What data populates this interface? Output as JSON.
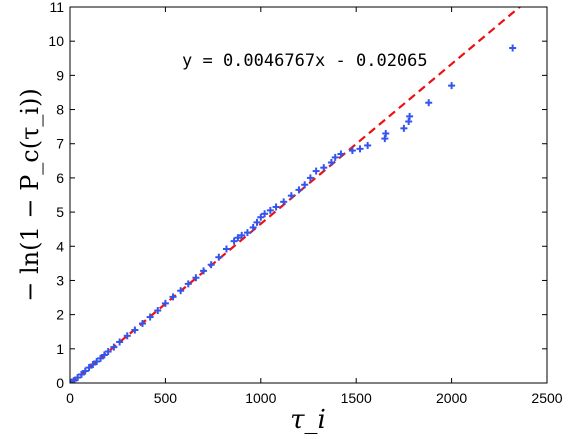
{
  "chart_data": {
    "type": "scatter",
    "title": "",
    "xlabel": "τ_i",
    "ylabel": "− ln(1 − P_c(τ_i))",
    "xlim": [
      0,
      2500
    ],
    "ylim": [
      0,
      11
    ],
    "xticks": [
      "0",
      "500",
      "1000",
      "1500",
      "2000",
      "2500"
    ],
    "yticks": [
      "0",
      "1",
      "2",
      "3",
      "4",
      "5",
      "6",
      "7",
      "8",
      "9",
      "10",
      "11"
    ],
    "grid": false,
    "annotation": "y = 0.0046767x - 0.02065",
    "series": [
      {
        "kind": "scatter",
        "marker": "+",
        "color": "#3355ee",
        "points": [
          [
            3,
            0.01
          ],
          [
            10,
            0.03
          ],
          [
            20,
            0.07
          ],
          [
            40,
            0.16
          ],
          [
            60,
            0.25
          ],
          [
            80,
            0.35
          ],
          [
            100,
            0.45
          ],
          [
            120,
            0.54
          ],
          [
            140,
            0.63
          ],
          [
            160,
            0.72
          ],
          [
            180,
            0.82
          ],
          [
            200,
            0.92
          ],
          [
            230,
            1.05
          ],
          [
            260,
            1.2
          ],
          [
            300,
            1.38
          ],
          [
            340,
            1.55
          ],
          [
            380,
            1.74
          ],
          [
            420,
            1.93
          ],
          [
            460,
            2.12
          ],
          [
            500,
            2.33
          ],
          [
            540,
            2.52
          ],
          [
            580,
            2.7
          ],
          [
            620,
            2.9
          ],
          [
            660,
            3.08
          ],
          [
            700,
            3.28
          ],
          [
            740,
            3.46
          ],
          [
            780,
            3.68
          ],
          [
            820,
            3.92
          ],
          [
            860,
            4.15
          ],
          [
            880,
            4.25
          ],
          [
            900,
            4.32
          ],
          [
            930,
            4.4
          ],
          [
            960,
            4.55
          ],
          [
            980,
            4.7
          ],
          [
            1000,
            4.85
          ],
          [
            1020,
            4.95
          ],
          [
            1050,
            5.05
          ],
          [
            1080,
            5.15
          ],
          [
            1120,
            5.3
          ],
          [
            1160,
            5.48
          ],
          [
            1200,
            5.65
          ],
          [
            1230,
            5.8
          ],
          [
            1260,
            6.0
          ],
          [
            1290,
            6.2
          ],
          [
            1330,
            6.3
          ],
          [
            1370,
            6.45
          ],
          [
            1390,
            6.6
          ],
          [
            1420,
            6.7
          ],
          [
            1480,
            6.8
          ],
          [
            1520,
            6.85
          ],
          [
            1560,
            6.95
          ],
          [
            1650,
            7.15
          ],
          [
            1655,
            7.3
          ],
          [
            1750,
            7.45
          ],
          [
            1775,
            7.65
          ],
          [
            1780,
            7.8
          ],
          [
            1880,
            8.2
          ],
          [
            2000,
            8.7
          ],
          [
            2320,
            9.8
          ]
        ]
      },
      {
        "kind": "line",
        "style": "dashed",
        "color": "#ee1111",
        "slope": 0.0046767,
        "intercept": -0.02065
      }
    ]
  }
}
